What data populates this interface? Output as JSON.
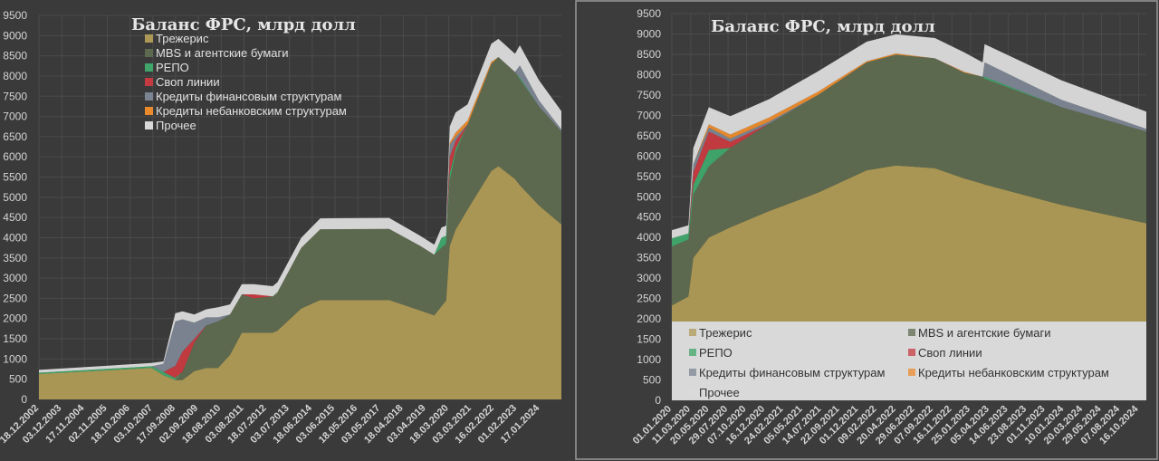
{
  "colors": {
    "background": "#3c3c3c",
    "grid": "#4b4b4b",
    "treasury": "#ad9955",
    "mbs": "#5e6a4f",
    "repo": "#3fa56a",
    "swap": "#c43a40",
    "credit_fin": "#7b8491",
    "credit_nonbank": "#ea8a2c",
    "other": "#d9d9d9"
  },
  "chart_data": [
    {
      "type": "area",
      "stacked": true,
      "title": "Баланс ФРС, млрд долл",
      "ylim": [
        0,
        9500
      ],
      "yticks": [
        "0",
        "500",
        "1000",
        "1500",
        "2000",
        "2500",
        "3000",
        "3500",
        "4000",
        "4500",
        "5000",
        "5500",
        "6000",
        "6500",
        "7000",
        "7500",
        "8000",
        "8500",
        "9000",
        "9500"
      ],
      "xlim_year": [
        2002.96,
        2024.95
      ],
      "xticks": [
        "18.12.2002",
        "03.12.2003",
        "17.11.2004",
        "02.11.2005",
        "18.10.2006",
        "03.10.2007",
        "17.09.2008",
        "02.09.2009",
        "18.08.2010",
        "03.08.2011",
        "18.07.2012",
        "03.07.2013",
        "18.06.2014",
        "03.06.2015",
        "18.05.2016",
        "03.05.2017",
        "18.04.2018",
        "03.04.2019",
        "18.03.2020",
        "03.03.2021",
        "16.02.2022",
        "01.02.2023",
        "17.01.2024"
      ],
      "legend_position": "top-left",
      "legend": [
        "Трежерис",
        "MBS и агентские бумаги",
        "РЕПО",
        "Своп линии",
        "Кредиты финансовым структурам",
        "Кредиты небанковским структурам",
        "Прочее"
      ],
      "x": [
        2002.96,
        2007.7,
        2008.2,
        2008.7,
        2009.0,
        2009.5,
        2010.0,
        2010.5,
        2011.0,
        2011.5,
        2012.0,
        2012.8,
        2013.0,
        2014.0,
        2014.8,
        2017.7,
        2019.0,
        2019.6,
        2019.9,
        2020.1,
        2020.25,
        2020.5,
        2021.0,
        2022.0,
        2022.3,
        2023.0,
        2023.2,
        2024.0,
        2024.95
      ],
      "series": [
        {
          "name": "Трежерис",
          "key": "treasury",
          "values": [
            630,
            780,
            600,
            480,
            480,
            700,
            780,
            780,
            1100,
            1650,
            1650,
            1650,
            1700,
            2250,
            2460,
            2460,
            2200,
            2080,
            2300,
            2450,
            3800,
            4200,
            4700,
            5650,
            5770,
            5450,
            5300,
            4800,
            4330
          ]
        },
        {
          "name": "MBS и агентские бумаги",
          "key": "mbs",
          "values": [
            0,
            0,
            0,
            0,
            200,
            700,
            1050,
            1150,
            1000,
            950,
            850,
            900,
            950,
            1500,
            1750,
            1760,
            1600,
            1500,
            1450,
            1400,
            1600,
            1900,
            2100,
            2650,
            2700,
            2650,
            2620,
            2450,
            2300
          ]
        },
        {
          "name": "РЕПО",
          "key": "repo",
          "values": [
            30,
            40,
            80,
            50,
            0,
            0,
            0,
            0,
            0,
            0,
            0,
            0,
            0,
            0,
            0,
            0,
            0,
            0,
            250,
            200,
            200,
            100,
            0,
            0,
            0,
            0,
            40,
            0,
            0
          ]
        },
        {
          "name": "Своп линии",
          "key": "swap",
          "values": [
            0,
            0,
            0,
            300,
            500,
            100,
            0,
            0,
            0,
            0,
            100,
            0,
            0,
            0,
            0,
            0,
            0,
            0,
            0,
            0,
            400,
            200,
            0,
            0,
            0,
            0,
            0,
            0,
            0
          ]
        },
        {
          "name": "Кредиты финансовым структурам",
          "key": "credit_fin",
          "values": [
            0,
            0,
            200,
            1100,
            800,
            400,
            200,
            100,
            0,
            0,
            0,
            0,
            0,
            0,
            0,
            0,
            0,
            0,
            0,
            0,
            300,
            100,
            0,
            0,
            0,
            0,
            300,
            150,
            50
          ]
        },
        {
          "name": "Кредиты небанковским структурам",
          "key": "credit_nonbank",
          "values": [
            0,
            0,
            0,
            0,
            0,
            0,
            0,
            0,
            0,
            0,
            0,
            0,
            0,
            0,
            0,
            0,
            0,
            0,
            0,
            0,
            50,
            100,
            100,
            50,
            0,
            0,
            0,
            0,
            0
          ]
        },
        {
          "name": "Прочее",
          "key": "other",
          "values": [
            70,
            80,
            60,
            200,
            200,
            200,
            200,
            250,
            250,
            250,
            250,
            250,
            250,
            250,
            270,
            270,
            250,
            250,
            250,
            250,
            400,
            500,
            400,
            450,
            450,
            450,
            500,
            500,
            450
          ]
        }
      ]
    },
    {
      "type": "area",
      "stacked": true,
      "title": "Баланс ФРС, млрд долл",
      "ylim": [
        0,
        9500
      ],
      "yticks": [
        "0",
        "500",
        "1000",
        "1500",
        "2000",
        "2500",
        "3000",
        "3500",
        "4000",
        "4500",
        "5000",
        "5500",
        "6000",
        "6500",
        "7000",
        "7500",
        "8000",
        "8500",
        "9000",
        "9500"
      ],
      "xlim_year": [
        2020.0,
        2024.87
      ],
      "xticks": [
        "01.01.2020",
        "11.03.2020",
        "20.05.2020",
        "29.07.2020",
        "07.10.2020",
        "16.12.2020",
        "24.02.2021",
        "05.05.2021",
        "14.07.2021",
        "22.09.2021",
        "01.12.2021",
        "09.02.2022",
        "20.04.2022",
        "29.06.2022",
        "07.09.2022",
        "16.11.2022",
        "25.01.2023",
        "05.04.2023",
        "14.06.2023",
        "23.08.2023",
        "01.11.2023",
        "10.01.2024",
        "20.03.2024",
        "29.05.2024",
        "07.08.2024",
        "16.10.2024"
      ],
      "legend_position": "bottom",
      "legend": [
        "Трежерис",
        "MBS и агентские бумаги",
        "РЕПО",
        "Своп линии",
        "Кредиты финансовым структурам",
        "Кредиты небанковским структурам",
        "Прочее"
      ],
      "x": [
        2020.0,
        2020.17,
        2020.22,
        2020.38,
        2020.6,
        2021.0,
        2021.5,
        2022.0,
        2022.3,
        2022.7,
        2023.0,
        2023.19,
        2023.21,
        2024.0,
        2024.87
      ],
      "series": [
        {
          "name": "Трежерис",
          "key": "treasury",
          "values": [
            2330,
            2550,
            3500,
            4000,
            4250,
            4650,
            5100,
            5650,
            5770,
            5700,
            5450,
            5320,
            5300,
            4800,
            4350
          ]
        },
        {
          "name": "MBS и агентские бумаги",
          "key": "mbs",
          "values": [
            1450,
            1400,
            1550,
            1750,
            1950,
            2150,
            2400,
            2650,
            2720,
            2700,
            2600,
            2630,
            2600,
            2400,
            2250
          ]
        },
        {
          "name": "РЕПО",
          "key": "repo",
          "values": [
            200,
            150,
            250,
            400,
            0,
            0,
            0,
            0,
            0,
            0,
            0,
            0,
            50,
            0,
            0
          ]
        },
        {
          "name": "Своп линии",
          "key": "swap",
          "values": [
            0,
            0,
            300,
            450,
            150,
            0,
            0,
            0,
            0,
            0,
            0,
            0,
            0,
            0,
            0
          ]
        },
        {
          "name": "Кредиты финансовым структурам",
          "key": "credit_fin",
          "values": [
            0,
            0,
            200,
            100,
            80,
            50,
            0,
            0,
            0,
            0,
            0,
            0,
            350,
            180,
            70
          ]
        },
        {
          "name": "Кредиты небанковским структурам",
          "key": "credit_nonbank",
          "values": [
            0,
            0,
            0,
            80,
            100,
            100,
            80,
            30,
            30,
            0,
            20,
            0,
            0,
            0,
            0
          ]
        },
        {
          "name": "Прочее",
          "key": "other",
          "values": [
            200,
            200,
            400,
            420,
            450,
            450,
            500,
            480,
            470,
            500,
            480,
            350,
            450,
            480,
            420
          ]
        }
      ]
    }
  ]
}
